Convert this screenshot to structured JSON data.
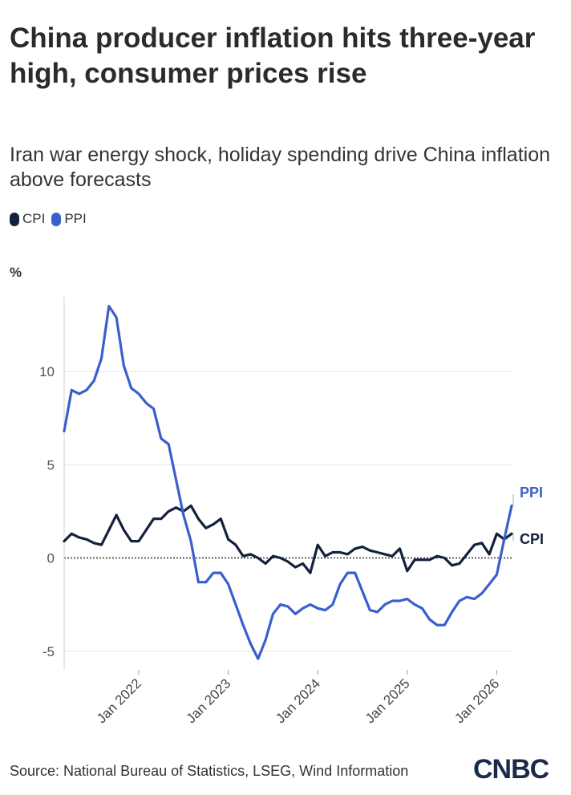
{
  "title": "China producer inflation hits three-year high, consumer prices rise",
  "subtitle": "Iran war energy shock, holiday spending drive China inflation above forecasts",
  "legend": [
    {
      "name": "CPI",
      "color": "#14213d"
    },
    {
      "name": "PPI",
      "color": "#3a5fcd"
    }
  ],
  "unit_label": "%",
  "source": "Source: National Bureau of Statistics, LSEG, Wind Information",
  "logo": "CNBC",
  "chart_data": {
    "type": "line",
    "ylim": [
      -6,
      14
    ],
    "yticks": [
      -5,
      0,
      5,
      10
    ],
    "xticks": [
      "Jan 2022",
      "Jan 2023",
      "Jan 2024",
      "Jan 2025",
      "Jan 2026"
    ],
    "x_start": "2021-03",
    "x_end": "2026-03",
    "zero_line": "dotted",
    "grid": "horizontal",
    "end_labels": [
      "PPI",
      "CPI"
    ],
    "series": [
      {
        "name": "CPI",
        "color": "#14213d",
        "values": [
          0.9,
          1.3,
          1.1,
          1.0,
          0.8,
          0.7,
          1.5,
          2.3,
          1.5,
          0.9,
          0.9,
          1.5,
          2.1,
          2.1,
          2.5,
          2.7,
          2.5,
          2.8,
          2.1,
          1.6,
          1.8,
          2.1,
          1.0,
          0.7,
          0.1,
          0.2,
          0.0,
          -0.3,
          0.1,
          0.0,
          -0.2,
          -0.5,
          -0.3,
          -0.8,
          0.7,
          0.1,
          0.3,
          0.3,
          0.2,
          0.5,
          0.6,
          0.4,
          0.3,
          0.2,
          0.1,
          0.5,
          -0.7,
          -0.1,
          -0.1,
          -0.1,
          0.1,
          0.0,
          -0.4,
          -0.3,
          0.2,
          0.7,
          0.8,
          0.2,
          1.3,
          1.0,
          1.3
        ]
      },
      {
        "name": "PPI",
        "color": "#3a5fcd",
        "values": [
          6.8,
          9.0,
          8.8,
          9.0,
          9.5,
          10.7,
          13.5,
          12.9,
          10.3,
          9.1,
          8.8,
          8.3,
          8.0,
          6.4,
          6.1,
          4.2,
          2.3,
          0.9,
          -1.3,
          -1.3,
          -0.8,
          -0.8,
          -1.4,
          -2.5,
          -3.6,
          -4.6,
          -5.4,
          -4.4,
          -3.0,
          -2.5,
          -2.6,
          -3.0,
          -2.7,
          -2.5,
          -2.7,
          -2.8,
          -2.5,
          -1.4,
          -0.8,
          -0.8,
          -1.8,
          -2.8,
          -2.9,
          -2.5,
          -2.3,
          -2.3,
          -2.2,
          -2.5,
          -2.7,
          -3.3,
          -3.6,
          -3.6,
          -2.9,
          -2.3,
          -2.1,
          -2.2,
          -1.9,
          -1.4,
          -0.9,
          1.0,
          2.8
        ]
      }
    ]
  }
}
